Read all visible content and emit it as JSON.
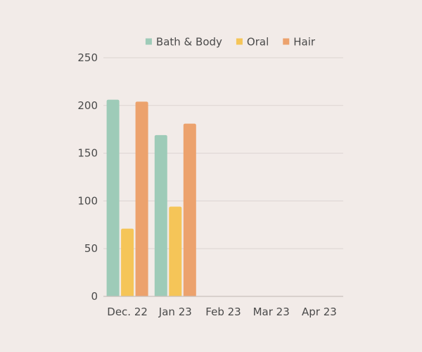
{
  "chart_data": {
    "type": "bar",
    "categories": [
      "Dec. 22",
      "Jan 23",
      "Feb 23",
      "Mar 23",
      "Apr 23"
    ],
    "series": [
      {
        "name": "Bath & Body",
        "color": "#9ecbb8",
        "values": [
          206,
          169,
          null,
          null,
          null
        ]
      },
      {
        "name": "Oral",
        "color": "#f5c558",
        "values": [
          71,
          94,
          null,
          null,
          null
        ]
      },
      {
        "name": "Hair",
        "color": "#eca26d",
        "values": [
          204,
          181,
          null,
          null,
          null
        ]
      }
    ],
    "ylim": [
      0,
      250
    ],
    "yticks": [
      0,
      50,
      100,
      150,
      200,
      250
    ],
    "grid": true,
    "legend": "top-center",
    "title": "",
    "xlabel": "",
    "ylabel": ""
  }
}
